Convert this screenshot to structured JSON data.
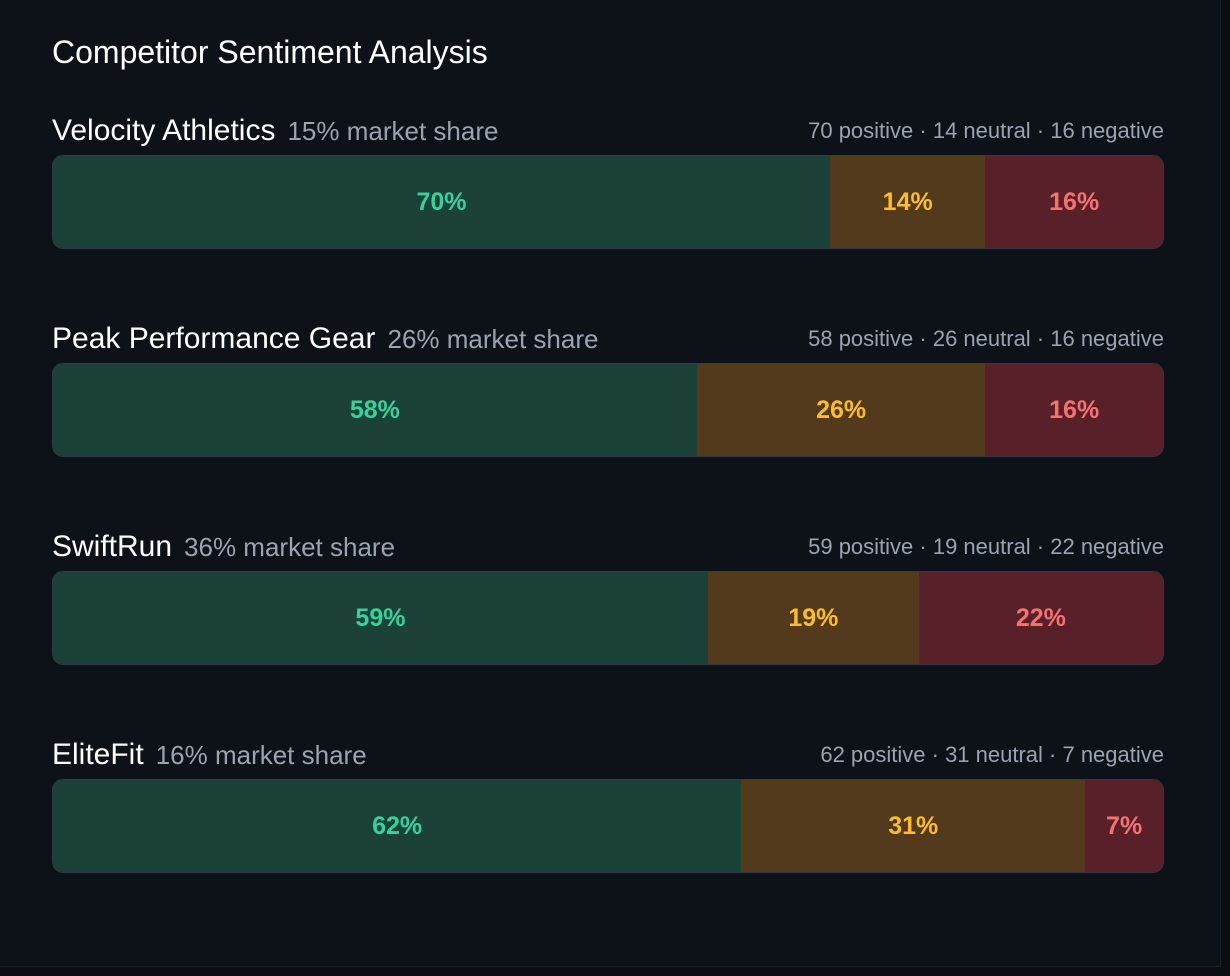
{
  "chart_data": {
    "type": "stacked_bar",
    "title": "Competitor Sentiment Analysis",
    "categories": [
      "Velocity Athletics",
      "Peak Performance Gear",
      "SwiftRun",
      "EliteFit"
    ],
    "category_notes": [
      "15% market share",
      "26% market share",
      "36% market share",
      "16% market share"
    ],
    "summaries": [
      "70 positive · 14 neutral · 16 negative",
      "58 positive · 26 neutral · 16 negative",
      "59 positive · 19 neutral · 22 negative",
      "62 positive · 31 neutral · 7 negative"
    ],
    "xlim": [
      0,
      100
    ],
    "series": [
      {
        "color": "#1b4139",
        "label_color": "#34d399",
        "values": [
          70,
          58,
          59,
          62
        ],
        "value_labels": [
          "70%",
          "58%",
          "59%",
          "62%"
        ]
      },
      {
        "color": "#543a1d",
        "label_color": "#fbbf24",
        "values": [
          14,
          26,
          19,
          31
        ],
        "value_labels": [
          "14%",
          "26%",
          "19%",
          "31%"
        ]
      },
      {
        "color": "#58212a",
        "label_color": "#f87171",
        "values": [
          16,
          16,
          22,
          7
        ],
        "value_labels": [
          "16%",
          "16%",
          "22%",
          "7%"
        ]
      }
    ]
  }
}
